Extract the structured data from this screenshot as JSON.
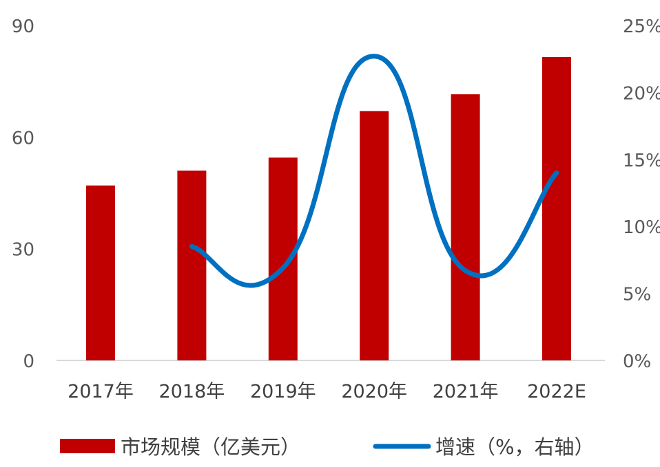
{
  "chart_data": {
    "type": "bar",
    "categories": [
      "2017年",
      "2018年",
      "2019年",
      "2020年",
      "2021年",
      "2022E"
    ],
    "series": [
      {
        "name": "市场规模（亿美元）",
        "type": "bar",
        "axis": "left",
        "values": [
          47,
          51,
          54.5,
          67,
          71.5,
          81.5
        ]
      },
      {
        "name": "增速（%，右轴）",
        "type": "line",
        "axis": "right",
        "values": [
          null,
          8.5,
          6.9,
          22.7,
          6.7,
          14.0
        ]
      }
    ],
    "y_left": {
      "ylim": [
        0,
        90
      ],
      "ticks": [
        "0",
        "30",
        "60",
        "90"
      ]
    },
    "y_right": {
      "ylim": [
        0,
        25
      ],
      "ticks": [
        "0%",
        "5%",
        "10%",
        "15%",
        "20%",
        "25%"
      ]
    },
    "grid": false,
    "legend_position": "bottom",
    "colors": {
      "bar": "#C00000",
      "line": "#0070C0",
      "axis": "#d9d9d9"
    }
  }
}
